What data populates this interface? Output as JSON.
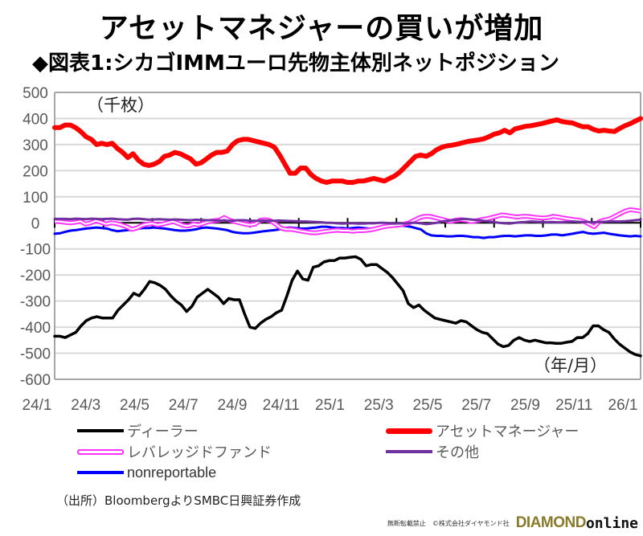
{
  "header": {
    "title": "アセットマネジャーの買いが増加",
    "subtitle": "◆図表1:シカゴIMMユーロ先物主体別ネットポジション"
  },
  "chart_data": {
    "type": "line",
    "title": "シカゴIMMユーロ先物主体別ネットポジション",
    "ylabel": "（千枚）",
    "xlabel": "（年/月）",
    "ylim": [
      -600,
      500
    ],
    "yticks": [
      500,
      400,
      300,
      200,
      100,
      0,
      -100,
      -200,
      -300,
      -400,
      -500,
      -600
    ],
    "xtick_labels": [
      "24/1",
      "24/3",
      "24/5",
      "24/7",
      "24/9",
      "24/11",
      "25/1",
      "25/3",
      "25/5",
      "25/7",
      "25/9",
      "25/11",
      "26/1"
    ],
    "grid": true,
    "legend_position": "bottom",
    "x_start": "2024-01",
    "x_end": "2026-02",
    "series": [
      {
        "name": "ディーラー",
        "color": "#000000",
        "style": "solid",
        "values": [
          -435,
          -435,
          -440,
          -430,
          -420,
          -395,
          -375,
          -365,
          -360,
          -365,
          -365,
          -365,
          -335,
          -315,
          -295,
          -270,
          -280,
          -255,
          -225,
          -230,
          -240,
          -255,
          -280,
          -300,
          -315,
          -340,
          -320,
          -285,
          -270,
          -255,
          -270,
          -285,
          -310,
          -290,
          -295,
          -295,
          -350,
          -400,
          -405,
          -385,
          -370,
          -360,
          -345,
          -335,
          -280,
          -220,
          -185,
          -215,
          -220,
          -170,
          -165,
          -150,
          -145,
          -145,
          -135,
          -135,
          -132,
          -130,
          -140,
          -165,
          -160,
          -160,
          -175,
          -190,
          -210,
          -235,
          -260,
          -310,
          -325,
          -315,
          -335,
          -350,
          -365,
          -370,
          -375,
          -380,
          -385,
          -375,
          -380,
          -395,
          -410,
          -420,
          -425,
          -445,
          -465,
          -475,
          -470,
          -450,
          -440,
          -450,
          -455,
          -450,
          -455,
          -460,
          -460,
          -462,
          -462,
          -458,
          -455,
          -440,
          -440,
          -425,
          -395,
          -395,
          -410,
          -420,
          -445,
          -465,
          -480,
          -495,
          -505,
          -510
        ]
      },
      {
        "name": "アセットマネージャー",
        "color": "#ff0000",
        "style": "thick",
        "values": [
          365,
          365,
          375,
          375,
          365,
          350,
          330,
          320,
          300,
          305,
          300,
          305,
          285,
          270,
          250,
          265,
          240,
          225,
          220,
          225,
          235,
          255,
          260,
          270,
          265,
          255,
          245,
          225,
          230,
          245,
          260,
          270,
          270,
          275,
          300,
          315,
          320,
          320,
          315,
          310,
          305,
          300,
          290,
          260,
          225,
          190,
          190,
          210,
          210,
          185,
          170,
          160,
          155,
          160,
          160,
          160,
          155,
          155,
          160,
          160,
          165,
          170,
          165,
          160,
          170,
          180,
          195,
          215,
          235,
          255,
          260,
          255,
          265,
          280,
          290,
          295,
          298,
          302,
          307,
          312,
          315,
          318,
          322,
          330,
          340,
          345,
          355,
          345,
          360,
          365,
          370,
          372,
          376,
          380,
          385,
          390,
          395,
          388,
          385,
          383,
          375,
          368,
          368,
          358,
          352,
          355,
          352,
          350,
          362,
          372,
          380,
          390,
          400
        ]
      },
      {
        "name": "レバレッジドファンド",
        "color": "#ff33ff",
        "style": "double",
        "values": [
          5,
          5,
          2,
          0,
          2,
          6,
          -5,
          0,
          8,
          2,
          -5,
          0,
          -3,
          -8,
          -15,
          -25,
          -20,
          -10,
          -5,
          -3,
          -8,
          -5,
          0,
          5,
          -2,
          -10,
          -12,
          -5,
          -8,
          -2,
          5,
          8,
          10,
          20,
          10,
          5,
          0,
          -5,
          -8,
          -5,
          10,
          12,
          8,
          -5,
          -20,
          -25,
          -25,
          -28,
          -32,
          -35,
          -38,
          -38,
          -35,
          -32,
          -30,
          -28,
          -30,
          -30,
          -32,
          -30,
          -30,
          -28,
          -25,
          -20,
          -15,
          -12,
          -10,
          -8,
          -5,
          0,
          10,
          20,
          25,
          25,
          20,
          15,
          10,
          5,
          10,
          12,
          10,
          5,
          8,
          12,
          15,
          20,
          25,
          30,
          28,
          25,
          22,
          25,
          25,
          22,
          20,
          18,
          20,
          25,
          22,
          18,
          15,
          12,
          10,
          5,
          -5,
          -15,
          5,
          10,
          15,
          25,
          35,
          45,
          50,
          48,
          45
        ]
      },
      {
        "name": "その他",
        "color": "#7030a0",
        "style": "solid",
        "values": [
          15,
          15,
          15,
          14,
          16,
          15,
          14,
          16,
          15,
          14,
          15,
          16,
          14,
          13,
          12,
          15,
          16,
          14,
          12,
          13,
          14,
          13,
          12,
          13,
          12,
          11,
          10,
          12,
          11,
          10,
          10,
          9,
          9,
          8,
          8,
          10,
          10,
          9,
          8,
          8,
          9,
          8,
          8,
          9,
          8,
          7,
          6,
          5,
          5,
          4,
          3,
          2,
          0,
          0,
          -2,
          -3,
          -2,
          -2,
          -3,
          -3,
          -2,
          -2,
          0,
          0,
          -2,
          -3,
          -2,
          -3,
          0,
          0,
          -2,
          -5,
          -3,
          0,
          5,
          8,
          10,
          12,
          15,
          14,
          12,
          10,
          8,
          5,
          3,
          0,
          -2,
          -3,
          0,
          2,
          3,
          5,
          4,
          3,
          2,
          3,
          2,
          2,
          3,
          5,
          4,
          3,
          3,
          2,
          3,
          4,
          5,
          5,
          5,
          6,
          8,
          10,
          12
        ]
      },
      {
        "name": "nonreportable",
        "color": "#0000ff",
        "style": "solid",
        "values": [
          -42,
          -40,
          -35,
          -30,
          -28,
          -25,
          -22,
          -20,
          -18,
          -20,
          -22,
          -28,
          -32,
          -30,
          -28,
          -25,
          -22,
          -20,
          -20,
          -18,
          -20,
          -22,
          -25,
          -28,
          -30,
          -30,
          -28,
          -25,
          -20,
          -18,
          -20,
          -22,
          -25,
          -28,
          -35,
          -38,
          -40,
          -40,
          -38,
          -35,
          -32,
          -30,
          -28,
          -25,
          -20,
          -18,
          -20,
          -22,
          -22,
          -20,
          -18,
          -15,
          -15,
          -18,
          -20,
          -20,
          -22,
          -20,
          -18,
          -20,
          -22,
          -22,
          -20,
          -18,
          -15,
          -12,
          -10,
          -12,
          -15,
          -20,
          -25,
          -40,
          -48,
          -50,
          -50,
          -52,
          -52,
          -50,
          -50,
          -52,
          -55,
          -55,
          -58,
          -55,
          -55,
          -52,
          -50,
          -50,
          -52,
          -50,
          -48,
          -48,
          -50,
          -50,
          -48,
          -45,
          -45,
          -48,
          -45,
          -42,
          -38,
          -35,
          -40,
          -42,
          -40,
          -38,
          -42,
          -45,
          -48,
          -50,
          -52,
          -50,
          -52
        ]
      }
    ]
  },
  "annotations": {
    "unit": "（千枚）",
    "xunit": "（年/月）"
  },
  "legend": [
    {
      "label": "ディーラー",
      "color": "#000000",
      "style": "solid"
    },
    {
      "label": "アセットマネージャー",
      "color": "#ff0000",
      "style": "thick"
    },
    {
      "label": "レバレッジドファンド",
      "color": "#ff33ff",
      "style": "double"
    },
    {
      "label": "その他",
      "color": "#7030a0",
      "style": "solid"
    },
    {
      "label": "nonreportable",
      "color": "#0000ff",
      "style": "solid"
    }
  ],
  "source": "（出所）BloombergよりSMBC日興証券作成",
  "footer": {
    "copyright": "無断転載禁止　©株式会社ダイヤモンド社",
    "brand_a": "DIAMOND",
    "brand_b": "online"
  }
}
